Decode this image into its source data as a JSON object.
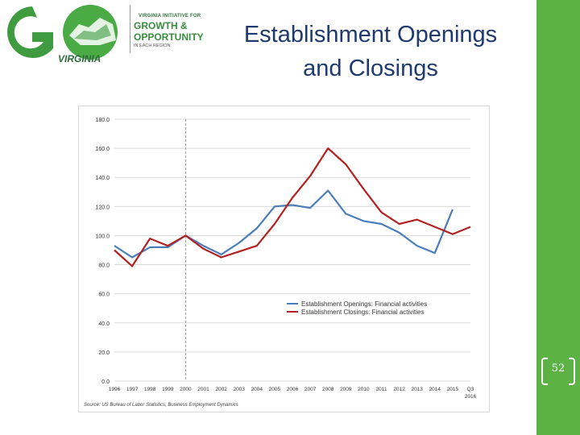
{
  "slide": {
    "title_line1": "Establishment Openings",
    "title_line2": "and Closings",
    "page_number": "52",
    "accent_color": "#5cb244"
  },
  "logo": {
    "line1": "VIRGINIA INITIATIVE FOR",
    "line2": "GROWTH &",
    "line3": "OPPORTUNITY",
    "line4": "IN EACH REGION",
    "virginia": "VIRGINIA"
  },
  "chart_data": {
    "type": "line",
    "categories": [
      "1996",
      "1997",
      "1998",
      "1999",
      "2000",
      "2001",
      "2002",
      "2003",
      "2004",
      "2005",
      "2006",
      "2007",
      "2008",
      "2009",
      "2010",
      "2011",
      "2012",
      "2013",
      "2014",
      "2015",
      "Q3 2016"
    ],
    "ylim": [
      0,
      180
    ],
    "yticks": [
      "0.0",
      "20.0",
      "40.0",
      "60.0",
      "80.0",
      "100.0",
      "120.0",
      "140.0",
      "160.0",
      "180.0"
    ],
    "ylabel": "",
    "xlabel": "",
    "title": "",
    "vertical_marker_category": "2000",
    "legend_position": "center-right",
    "grid": true,
    "source": "Source: US Bureau of Labor Statistics, Business Employment Dynamics",
    "series": [
      {
        "name": "Establishment Openings: Financial activities",
        "color": "#4a7ebb",
        "values": [
          93,
          85,
          92,
          92,
          100,
          93,
          87,
          95,
          105,
          120,
          121,
          119,
          131,
          115,
          110,
          108,
          102,
          93,
          88,
          118,
          null
        ]
      },
      {
        "name": "Establishment Closings: Financial activities",
        "color": "#b22222",
        "values": [
          90,
          79,
          98,
          93,
          100,
          91,
          85,
          89,
          93,
          108,
          126,
          141,
          160,
          149,
          132,
          116,
          108,
          111,
          106,
          101,
          106
        ]
      }
    ]
  }
}
